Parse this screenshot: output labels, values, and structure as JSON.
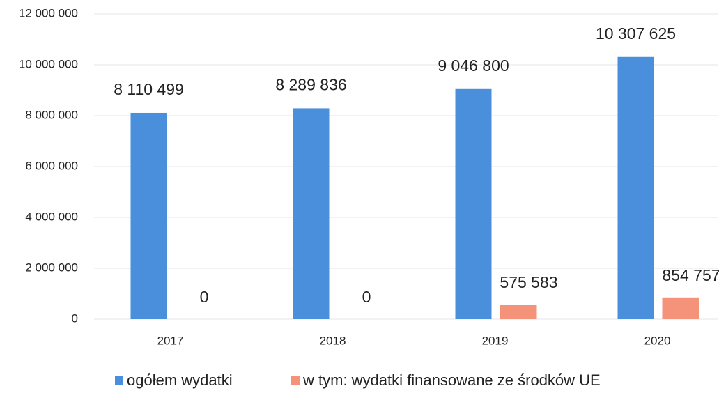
{
  "chart_data": {
    "type": "bar",
    "categories": [
      "2017",
      "2018",
      "2019",
      "2020"
    ],
    "series": [
      {
        "name": "ogółem wydatki",
        "color": "#4a8fdb",
        "values": [
          8110499,
          8289836,
          9046800,
          10307625
        ],
        "value_labels": [
          "8 110 499",
          "8 289 836",
          "9 046 800",
          "10 307 625"
        ]
      },
      {
        "name": "w tym: wydatki finansowane ze środków UE",
        "color": "#f4937a",
        "values": [
          0,
          0,
          575583,
          854757
        ],
        "value_labels": [
          "0",
          "0",
          "575 583",
          "854 757"
        ]
      }
    ],
    "ylim": [
      0,
      12000000
    ],
    "yticks": [
      0,
      {
        "value": 2000000,
        "label": "2 000 000"
      },
      {
        "value": 4000000,
        "label": "4 000 000"
      },
      {
        "value": 6000000,
        "label": "6 000 000"
      },
      {
        "value": 8000000,
        "label": "8 000 000"
      },
      {
        "value": 10000000,
        "label": "10 000 000"
      },
      {
        "value": 12000000,
        "label": "12 000 000"
      }
    ],
    "grid": true,
    "legend": "bottom"
  }
}
